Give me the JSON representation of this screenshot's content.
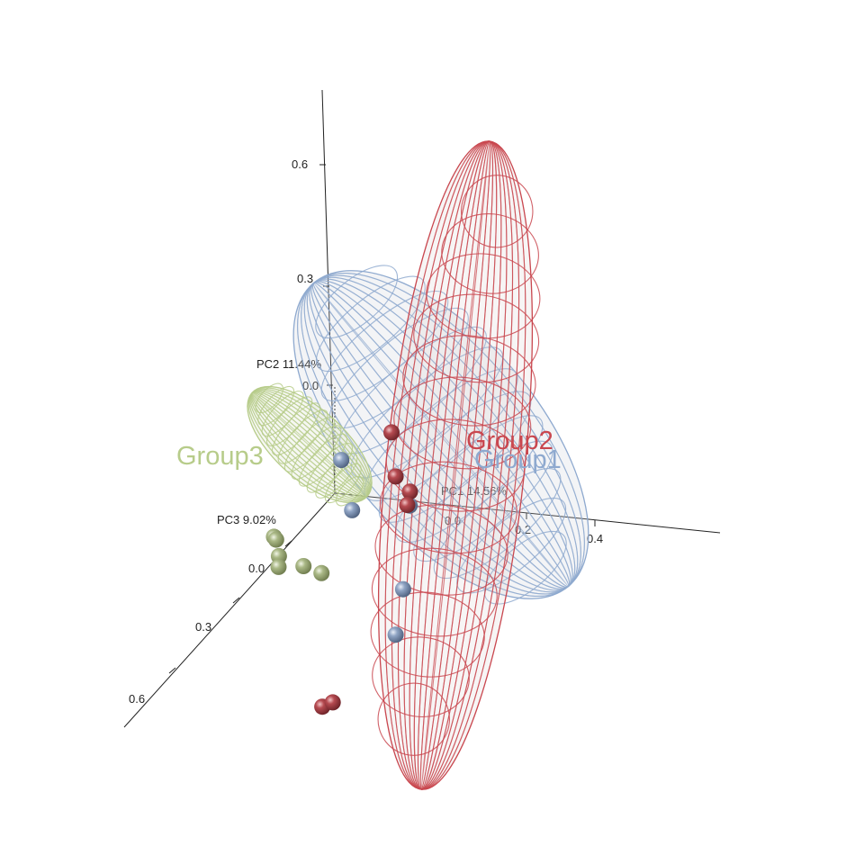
{
  "chart_data": {
    "type": "scatter",
    "subtype": "3d-pca-scatter-with-ellipsoids",
    "axes": {
      "x": {
        "label": "PC1 14.56%",
        "ticks": [
          "0.0",
          "0.2",
          "0.4"
        ]
      },
      "y": {
        "label": "PC2 11.44%",
        "ticks": [
          "0.0",
          "0.3",
          "0.6"
        ]
      },
      "z": {
        "label": "PC3 9.02%",
        "ticks": [
          "0.0",
          "0.3",
          "0.6"
        ]
      }
    },
    "series": [
      {
        "name": "Group1",
        "color": "#8ea9cf",
        "point_color": "#7b8fae",
        "points": [
          {
            "pc1": -0.05,
            "pc2": 0.01,
            "pc3": -0.1
          },
          {
            "pc1": 0.0,
            "pc2": -0.07,
            "pc3": -0.08
          },
          {
            "pc1": 0.18,
            "pc2": -0.04,
            "pc3": -0.06
          },
          {
            "pc1": 0.19,
            "pc2": -0.18,
            "pc3": -0.03
          },
          {
            "pc1": 0.18,
            "pc2": -0.26,
            "pc3": -0.02
          }
        ]
      },
      {
        "name": "Group2",
        "color": "#c9474f",
        "point_color": "#b03a42",
        "points": [
          {
            "pc1": 0.08,
            "pc2": 0.06,
            "pc3": -0.12
          },
          {
            "pc1": 0.11,
            "pc2": -0.01,
            "pc3": -0.1
          },
          {
            "pc1": 0.16,
            "pc2": -0.03,
            "pc3": -0.09
          },
          {
            "pc1": 0.16,
            "pc2": -0.05,
            "pc3": -0.08
          },
          {
            "pc1": 0.02,
            "pc2": -0.37,
            "pc3": 0.05
          },
          {
            "pc1": 0.05,
            "pc2": -0.36,
            "pc3": 0.05
          }
        ]
      },
      {
        "name": "Group3",
        "color": "#b7cc8a",
        "point_color": "#a3b37a",
        "points": [
          {
            "pc1": -0.12,
            "pc2": -0.05,
            "pc3": 0.08
          },
          {
            "pc1": -0.12,
            "pc2": -0.06,
            "pc3": 0.07
          },
          {
            "pc1": -0.11,
            "pc2": -0.09,
            "pc3": 0.07
          },
          {
            "pc1": -0.11,
            "pc2": -0.11,
            "pc3": 0.07
          },
          {
            "pc1": -0.07,
            "pc2": -0.13,
            "pc3": 0.02
          },
          {
            "pc1": -0.03,
            "pc2": -0.15,
            "pc3": 0.0
          }
        ]
      }
    ],
    "legend": "labels placed beside each ellipsoid",
    "grid": false
  }
}
